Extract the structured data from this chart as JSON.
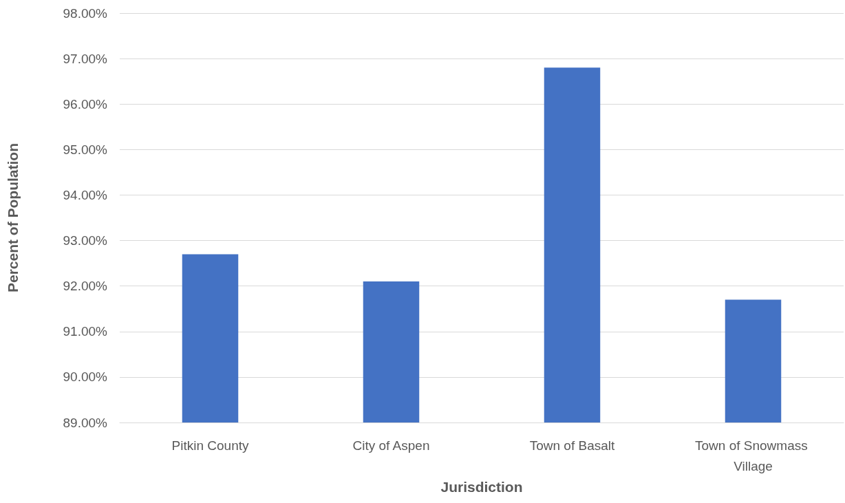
{
  "chart_data": {
    "type": "bar",
    "xlabel": "Jurisdiction",
    "ylabel": "Percent of Population",
    "categories": [
      "Pitkin County",
      "City of Aspen",
      "Town of Basalt",
      "Town of Snowmass Village"
    ],
    "values": [
      92.7,
      92.1,
      96.8,
      91.7
    ],
    "color": "#4472c4",
    "ylim": [
      89,
      98
    ],
    "yticks": [
      {
        "value": 89,
        "label": "89.00%"
      },
      {
        "value": 90,
        "label": "90.00%"
      },
      {
        "value": 91,
        "label": "91.00%"
      },
      {
        "value": 92,
        "label": "92.00%"
      },
      {
        "value": 93,
        "label": "93.00%"
      },
      {
        "value": 94,
        "label": "94.00%"
      },
      {
        "value": 95,
        "label": "95.00%"
      },
      {
        "value": 96,
        "label": "96.00%"
      },
      {
        "value": 97,
        "label": "97.00%"
      },
      {
        "value": 98,
        "label": "98.00%"
      }
    ],
    "grid": true
  }
}
